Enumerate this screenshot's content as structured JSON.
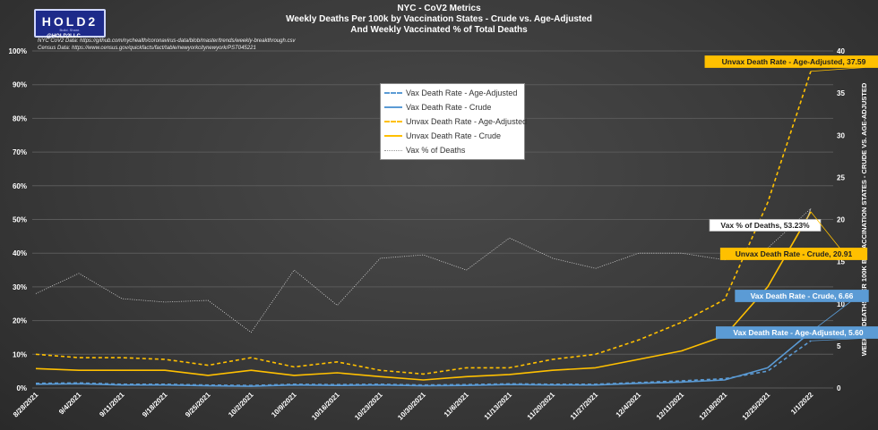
{
  "header": {
    "logo_text": "HOLD2",
    "logo_sub": "Build. Share.",
    "handle": "@HOLD2LLC",
    "title_line1": "NYC - CoV2 Metrics",
    "title_line2": "Weekly Deaths Per 100k by Vaccination States - Crude vs. Age-Adjusted",
    "title_line3": "And Weekly Vaccinated % of Total Deaths",
    "source_line1": "NYC CoV2 Data: https://github.com/nychealth/coronavirus-data/blob/master/trends/weekly-breakthrough.csv",
    "source_line2": "Census Data: https://www.census.gov/quickfacts/fact/table/newyorkcitynewyork/PST045221"
  },
  "chart_data": {
    "type": "line",
    "categories": [
      "8/28/2021",
      "9/4/2021",
      "9/11/2021",
      "9/18/2021",
      "9/25/2021",
      "10/2/2021",
      "10/9/2021",
      "10/16/2021",
      "10/23/2021",
      "10/30/2021",
      "11/6/2021",
      "11/13/2021",
      "11/20/2021",
      "11/27/2021",
      "12/4/2021",
      "12/11/2021",
      "12/18/2021",
      "12/25/2021",
      "1/1/2022"
    ],
    "left_axis": {
      "min": 0,
      "max": 100,
      "step": 10,
      "tick_labels": [
        "0%",
        "10%",
        "20%",
        "30%",
        "40%",
        "50%",
        "60%",
        "70%",
        "80%",
        "90%",
        "100%"
      ]
    },
    "right_axis": {
      "min": 0,
      "max": 40,
      "step": 5,
      "label": "WEEKLY DEATHS PER 100K BY VACCINATION STATES - CRUDE VS. AGE-ADJUSTED",
      "tick_labels": [
        "0",
        "5",
        "10",
        "15",
        "20",
        "25",
        "30",
        "35",
        "40"
      ]
    },
    "series": [
      {
        "name": "Vax Death Rate - Age-Adjusted",
        "axis": "right",
        "color": "#5b9bd5",
        "dash": true,
        "values": [
          0.55,
          0.6,
          0.45,
          0.45,
          0.35,
          0.3,
          0.45,
          0.4,
          0.45,
          0.35,
          0.4,
          0.5,
          0.45,
          0.45,
          0.65,
          0.85,
          1.1,
          2.0,
          5.6
        ]
      },
      {
        "name": "Vax Death Rate - Crude",
        "axis": "right",
        "color": "#5b9bd5",
        "dash": false,
        "values": [
          0.45,
          0.5,
          0.35,
          0.35,
          0.25,
          0.2,
          0.35,
          0.3,
          0.35,
          0.25,
          0.3,
          0.4,
          0.35,
          0.35,
          0.55,
          0.7,
          0.95,
          2.4,
          6.66
        ]
      },
      {
        "name": "Unvax Death Rate - Age-Adjusted",
        "axis": "right",
        "color": "#ffc000",
        "dash": true,
        "values": [
          4.0,
          3.6,
          3.6,
          3.4,
          2.7,
          3.6,
          2.5,
          3.1,
          2.1,
          1.65,
          2.4,
          2.4,
          3.4,
          4.0,
          5.7,
          7.8,
          10.5,
          22.0,
          37.59
        ]
      },
      {
        "name": "Unvax Death Rate - Crude",
        "axis": "right",
        "color": "#ffc000",
        "dash": false,
        "values": [
          2.3,
          2.1,
          2.1,
          2.1,
          1.5,
          2.1,
          1.5,
          1.8,
          1.35,
          0.95,
          1.35,
          1.6,
          2.1,
          2.4,
          3.4,
          4.4,
          6.2,
          12.0,
          20.91
        ]
      },
      {
        "name": "Vax % of Deaths",
        "axis": "left",
        "color": "#d9d9d9",
        "dash": "dot",
        "values": [
          28,
          34,
          26.5,
          25.5,
          26,
          16.5,
          35,
          24.5,
          38.5,
          39.5,
          35,
          44.5,
          38.5,
          35.5,
          40,
          40,
          38,
          41.5,
          53.23
        ]
      }
    ],
    "annotations": [
      {
        "text": "Unvax Death Rate - Age-Adjusted, 37.59",
        "series": 2,
        "style": "gold"
      },
      {
        "text": "Vax % of Deaths, 53.23%",
        "series": 4,
        "style": "white"
      },
      {
        "text": "Unvax Death Rate - Crude, 20.91",
        "series": 3,
        "style": "gold"
      },
      {
        "text": "Vax Death Rate - Crude, 6.66",
        "series": 1,
        "style": "blue"
      },
      {
        "text": "Vax Death Rate - Age-Adjusted, 5.60",
        "series": 0,
        "style": "blue"
      }
    ],
    "legend_position": "top-center",
    "grid": true
  }
}
